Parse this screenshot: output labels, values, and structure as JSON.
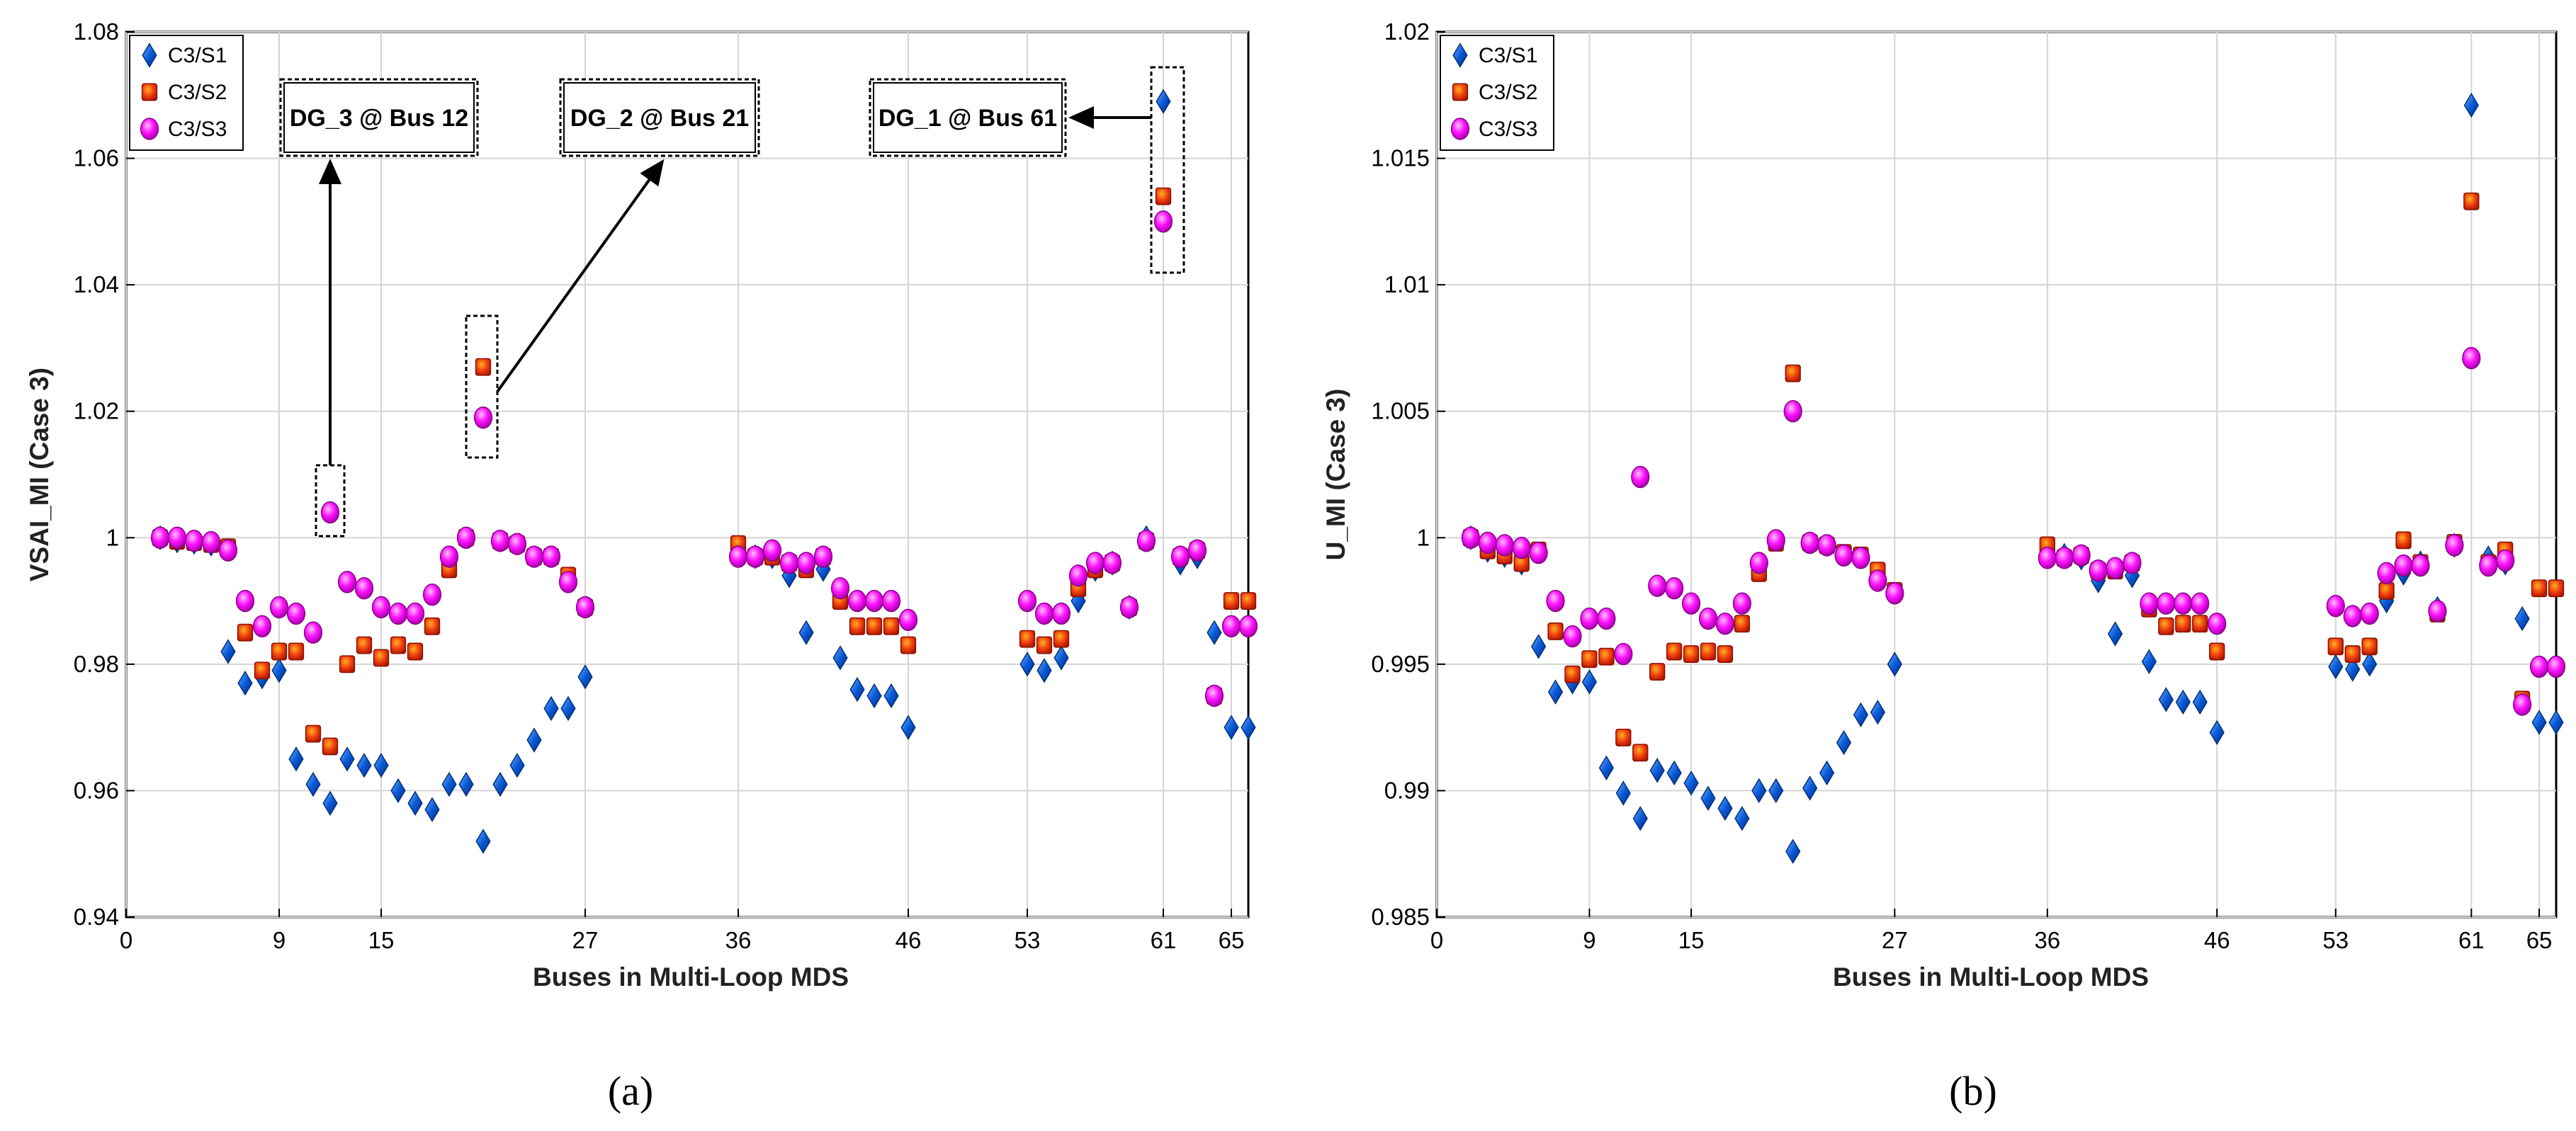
{
  "figure": {
    "panel_labels": [
      "(a)",
      "(b)"
    ]
  },
  "legend_icons": {
    "C3/S1": "diamond-marker-icon",
    "C3/S2": "square-marker-icon",
    "C3/S3": "circle-marker-icon"
  },
  "chart_data": [
    {
      "type": "scatter",
      "panel": "(a)",
      "xlabel": "Buses in Multi-Loop MDS",
      "ylabel": "VSAI_MI (Case 3)",
      "xlim": [
        0,
        66
      ],
      "ylim": [
        0.94,
        1.08
      ],
      "xticks": [
        0,
        9,
        15,
        27,
        36,
        46,
        53,
        61,
        65
      ],
      "yticks": [
        0.94,
        0.96,
        0.98,
        1.0,
        1.02,
        1.04,
        1.06,
        1.08
      ],
      "ytick_labels": [
        "0.94",
        "0.96",
        "0.98",
        "1",
        "1.02",
        "1.04",
        "1.06",
        "1.08"
      ],
      "grid": true,
      "legend": "top-left",
      "series": [
        {
          "name": "C3/S1",
          "marker": "diamond",
          "color": "#0055d4",
          "x": [
            2,
            3,
            4,
            5,
            6,
            7,
            8,
            9,
            10,
            11,
            12,
            13,
            14,
            15,
            16,
            17,
            18,
            19,
            20,
            21,
            22,
            23,
            24,
            25,
            26,
            27,
            36,
            37,
            38,
            39,
            40,
            41,
            42,
            43,
            44,
            45,
            46,
            53,
            54,
            55,
            56,
            57,
            58,
            59,
            60,
            61,
            62,
            63,
            64,
            65,
            66
          ],
          "y": [
            1.0,
            0.9995,
            0.9993,
            0.999,
            0.982,
            0.977,
            0.978,
            0.979,
            0.965,
            0.961,
            0.958,
            0.965,
            0.964,
            0.964,
            0.96,
            0.958,
            0.957,
            0.961,
            0.961,
            0.952,
            0.961,
            0.964,
            0.968,
            0.973,
            0.973,
            0.978,
            0.998,
            0.997,
            0.997,
            0.994,
            0.985,
            0.995,
            0.981,
            0.976,
            0.975,
            0.975,
            0.97,
            0.98,
            0.979,
            0.981,
            0.99,
            0.995,
            0.996,
            0.989,
            1.0,
            1.069,
            0.996,
            0.997,
            0.985,
            0.97,
            0.97
          ]
        },
        {
          "name": "C3/S2",
          "marker": "square",
          "color": "#e03010",
          "x": [
            2,
            3,
            4,
            5,
            6,
            7,
            8,
            9,
            10,
            11,
            12,
            13,
            14,
            15,
            16,
            17,
            18,
            19,
            20,
            21,
            22,
            23,
            24,
            25,
            26,
            27,
            36,
            37,
            38,
            39,
            40,
            41,
            42,
            43,
            44,
            45,
            46,
            53,
            54,
            55,
            56,
            57,
            58,
            59,
            60,
            61,
            62,
            63,
            64,
            65,
            66
          ],
          "y": [
            1.0,
            0.9995,
            0.9993,
            0.999,
            0.9985,
            0.985,
            0.979,
            0.982,
            0.982,
            0.969,
            0.967,
            0.98,
            0.983,
            0.981,
            0.983,
            0.982,
            0.986,
            0.995,
            1.0,
            1.027,
            0.9995,
            0.999,
            0.997,
            0.997,
            0.994,
            0.989,
            0.999,
            0.997,
            0.997,
            0.996,
            0.995,
            0.997,
            0.99,
            0.986,
            0.986,
            0.986,
            0.983,
            0.984,
            0.983,
            0.984,
            0.992,
            0.995,
            0.996,
            0.989,
            0.9995,
            1.054,
            0.997,
            0.998,
            0.975,
            0.99,
            0.99
          ]
        },
        {
          "name": "C3/S3",
          "marker": "circle",
          "color": "#ff00ff",
          "x": [
            2,
            3,
            4,
            5,
            6,
            7,
            8,
            9,
            10,
            11,
            12,
            13,
            14,
            15,
            16,
            17,
            18,
            19,
            20,
            21,
            22,
            23,
            24,
            25,
            26,
            27,
            36,
            37,
            38,
            39,
            40,
            41,
            42,
            43,
            44,
            45,
            46,
            53,
            54,
            55,
            56,
            57,
            58,
            59,
            60,
            61,
            62,
            63,
            64,
            65,
            66
          ],
          "y": [
            1.0,
            1.0,
            0.9995,
            0.9993,
            0.998,
            0.99,
            0.986,
            0.989,
            0.988,
            0.985,
            1.004,
            0.993,
            0.992,
            0.989,
            0.988,
            0.988,
            0.991,
            0.997,
            1.0,
            1.019,
            0.9995,
            0.999,
            0.997,
            0.997,
            0.993,
            0.989,
            0.997,
            0.997,
            0.998,
            0.996,
            0.996,
            0.997,
            0.992,
            0.99,
            0.99,
            0.99,
            0.987,
            0.99,
            0.988,
            0.988,
            0.994,
            0.996,
            0.996,
            0.989,
            0.9995,
            1.05,
            0.997,
            0.998,
            0.975,
            0.986,
            0.986
          ]
        }
      ],
      "annotations": [
        {
          "text": "DG_3 @ Bus 12",
          "bus": 12,
          "value": 1.004
        },
        {
          "text": "DG_2 @ Bus 21",
          "bus": 21,
          "value": 1.019
        },
        {
          "text": "DG_1 @ Bus 61",
          "bus": 61,
          "value": 1.069
        }
      ]
    },
    {
      "type": "scatter",
      "panel": "(b)",
      "xlabel": "Buses in Multi-Loop MDS",
      "ylabel": "U_MI (Case 3)",
      "xlim": [
        0,
        66
      ],
      "ylim": [
        0.985,
        1.02
      ],
      "xticks": [
        0,
        9,
        15,
        27,
        36,
        46,
        53,
        61,
        65
      ],
      "yticks": [
        0.985,
        0.99,
        0.995,
        1.0,
        1.005,
        1.01,
        1.015,
        1.02
      ],
      "ytick_labels": [
        "0.985",
        "0.99",
        "0.995",
        "1",
        "1.005",
        "1.01",
        "1.015",
        "1.02"
      ],
      "grid": true,
      "legend": "top-left",
      "series": [
        {
          "name": "C3/S1",
          "marker": "diamond",
          "color": "#0055d4",
          "x": [
            2,
            3,
            4,
            5,
            6,
            7,
            8,
            9,
            10,
            11,
            12,
            13,
            14,
            15,
            16,
            17,
            18,
            19,
            20,
            21,
            22,
            23,
            24,
            25,
            26,
            27,
            36,
            37,
            38,
            39,
            40,
            41,
            42,
            43,
            44,
            45,
            46,
            53,
            54,
            55,
            56,
            57,
            58,
            59,
            60,
            61,
            62,
            63,
            64,
            65,
            66
          ],
          "y": [
            1.0,
            0.9995,
            0.9993,
            0.999,
            0.9957,
            0.9939,
            0.9943,
            0.9943,
            0.9909,
            0.9899,
            0.9889,
            0.9908,
            0.9907,
            0.9903,
            0.9897,
            0.9893,
            0.9889,
            0.99,
            0.99,
            0.9876,
            0.9901,
            0.9907,
            0.9919,
            0.993,
            0.9931,
            0.995,
            0.9995,
            0.9993,
            0.9992,
            0.9983,
            0.9962,
            0.9985,
            0.9951,
            0.9936,
            0.9935,
            0.9935,
            0.9923,
            0.9949,
            0.9948,
            0.995,
            0.9975,
            0.9986,
            0.999,
            0.9972,
            0.9997,
            1.0171,
            0.9992,
            0.999,
            0.9968,
            0.9927,
            0.9927
          ]
        },
        {
          "name": "C3/S2",
          "marker": "square",
          "color": "#e03010",
          "x": [
            2,
            3,
            4,
            5,
            6,
            7,
            8,
            9,
            10,
            11,
            12,
            13,
            14,
            15,
            16,
            17,
            18,
            19,
            20,
            21,
            22,
            23,
            24,
            25,
            26,
            27,
            36,
            37,
            38,
            39,
            40,
            41,
            42,
            43,
            44,
            45,
            46,
            53,
            54,
            55,
            56,
            57,
            58,
            59,
            60,
            61,
            62,
            63,
            64,
            65,
            66
          ],
          "y": [
            1.0,
            0.9995,
            0.9993,
            0.999,
            0.9995,
            0.9963,
            0.9946,
            0.9952,
            0.9953,
            0.9921,
            0.9915,
            0.9947,
            0.9955,
            0.9954,
            0.9955,
            0.9954,
            0.9966,
            0.9986,
            0.9998,
            1.0065,
            0.9998,
            0.9997,
            0.9994,
            0.9993,
            0.9987,
            0.9979,
            0.9997,
            0.9992,
            0.9993,
            0.9987,
            0.9987,
            0.999,
            0.9972,
            0.9965,
            0.9966,
            0.9966,
            0.9955,
            0.9957,
            0.9954,
            0.9957,
            0.9979,
            0.9999,
            0.999,
            0.997,
            0.9998,
            1.0133,
            0.999,
            0.9995,
            0.9936,
            0.998,
            0.998
          ]
        },
        {
          "name": "C3/S3",
          "marker": "circle",
          "color": "#ff00ff",
          "x": [
            2,
            3,
            4,
            5,
            6,
            7,
            8,
            9,
            10,
            11,
            12,
            13,
            14,
            15,
            16,
            17,
            18,
            19,
            20,
            21,
            22,
            23,
            24,
            25,
            26,
            27,
            36,
            37,
            38,
            39,
            40,
            41,
            42,
            43,
            44,
            45,
            46,
            53,
            54,
            55,
            56,
            57,
            58,
            59,
            60,
            61,
            62,
            63,
            64,
            65,
            66
          ],
          "y": [
            1.0,
            0.9998,
            0.9997,
            0.9996,
            0.9994,
            0.9975,
            0.9961,
            0.9968,
            0.9968,
            0.9954,
            1.0024,
            0.9981,
            0.998,
            0.9974,
            0.9968,
            0.9966,
            0.9974,
            0.999,
            0.9999,
            1.005,
            0.9998,
            0.9997,
            0.9993,
            0.9992,
            0.9983,
            0.9978,
            0.9992,
            0.9992,
            0.9993,
            0.9987,
            0.9988,
            0.999,
            0.9974,
            0.9974,
            0.9974,
            0.9974,
            0.9966,
            0.9973,
            0.9969,
            0.997,
            0.9986,
            0.9989,
            0.9989,
            0.9971,
            0.9997,
            1.0071,
            0.9989,
            0.9991,
            0.9934,
            0.9949,
            0.9949
          ]
        }
      ]
    }
  ]
}
